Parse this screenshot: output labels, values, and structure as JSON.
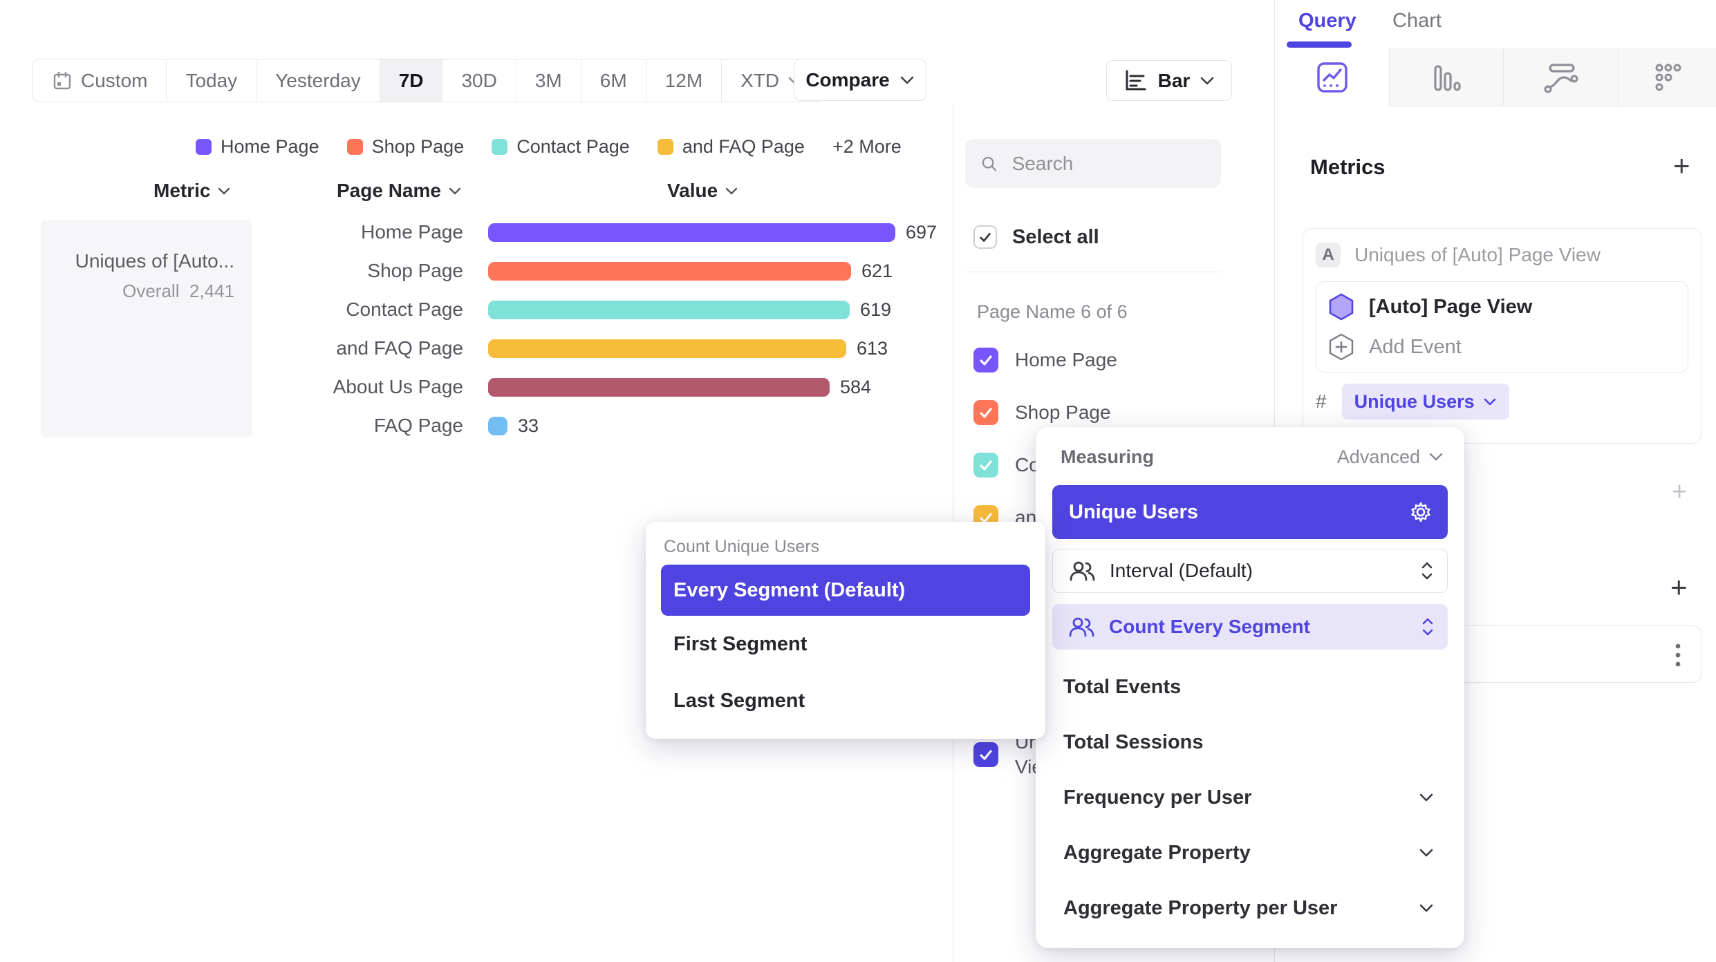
{
  "colors": {
    "accent": "#4f44e0",
    "accent_soft": "#e8e5fb",
    "border": "#e7e7e8",
    "series": [
      "#7856FF",
      "#FF7557",
      "#80E1D9",
      "#F8BC3B",
      "#B2596E",
      "#72BEF4"
    ]
  },
  "toolbar": {
    "ranges": [
      {
        "label": "Custom",
        "icon": "calendar"
      },
      {
        "label": "Today"
      },
      {
        "label": "Yesterday"
      },
      {
        "label": "7D",
        "active": true
      },
      {
        "label": "30D"
      },
      {
        "label": "3M"
      },
      {
        "label": "6M"
      },
      {
        "label": "12M"
      },
      {
        "label": "XTD",
        "chevron": true
      }
    ],
    "compare_label": "Compare",
    "chart_type_label": "Bar"
  },
  "legend": {
    "items": [
      {
        "label": "Home Page",
        "color": "#7856FF"
      },
      {
        "label": "Shop Page",
        "color": "#FF7557"
      },
      {
        "label": "Contact Page",
        "color": "#80E1D9"
      },
      {
        "label": "and FAQ Page",
        "color": "#F8BC3B"
      }
    ],
    "more_label": "+2 More"
  },
  "table": {
    "metric_header": "Metric",
    "page_header": "Page Name",
    "value_header": "Value",
    "metric_cell": {
      "name": "Uniques of [Auto...",
      "overall_label": "Overall",
      "overall_value": "2,441"
    }
  },
  "chart_data": {
    "type": "bar",
    "orientation": "horizontal",
    "title": "Uniques of [Auto] Page View",
    "categories": [
      "Home Page",
      "Shop Page",
      "Contact Page",
      "and FAQ Page",
      "About Us Page",
      "FAQ Page"
    ],
    "values": [
      697,
      621,
      619,
      613,
      584,
      33
    ],
    "colors": [
      "#7856FF",
      "#FF7557",
      "#80E1D9",
      "#F8BC3B",
      "#B2596E",
      "#72BEF4"
    ],
    "overall_total": 2441,
    "xlabel": "Value",
    "ylabel": "Page Name",
    "legend_position": "top",
    "grid": false
  },
  "segment_panel": {
    "search_placeholder": "Search",
    "select_all_label": "Select all",
    "group_label": "Page Name 6 of 6",
    "items": [
      {
        "label": "Home Page",
        "color": "#7856FF",
        "checked": true
      },
      {
        "label": "Shop Page",
        "color": "#FF7557",
        "checked": true
      },
      {
        "label": "Contact Page",
        "color": "#80E1D9",
        "checked": true
      },
      {
        "label": "and FAQ Page",
        "color": "#F8BC3B",
        "checked": true
      },
      {
        "label": "About Us Page",
        "color": "#B2596E",
        "checked": true
      },
      {
        "label": "FAQ Page",
        "color": "#72BEF4",
        "checked": true
      }
    ],
    "extra_item": {
      "label": "Uniques of [Auto] Page View",
      "color": "#4F44E0",
      "checked": true
    }
  },
  "sidebar": {
    "tabs": {
      "query": "Query",
      "chart": "Chart"
    },
    "metrics_title": "Metrics",
    "metric": {
      "badge": "A",
      "title": "Uniques of [Auto] Page View",
      "event_name": "[Auto] Page View",
      "add_event_label": "Add Event",
      "hash": "#",
      "measurement_label": "Unique Users"
    }
  },
  "count_menu": {
    "title": "Count Unique Users",
    "selected": "Every Segment (Default)",
    "items": [
      "First Segment",
      "Last Segment"
    ]
  },
  "measuring_menu": {
    "title": "Measuring",
    "advanced_label": "Advanced",
    "selected": "Unique Users",
    "interval_label": "Interval (Default)",
    "count_mode_label": "Count Every Segment",
    "plain_items": [
      "Total Events",
      "Total Sessions"
    ],
    "expandable_items": [
      "Frequency per User",
      "Aggregate Property",
      "Aggregate Property per User"
    ]
  }
}
